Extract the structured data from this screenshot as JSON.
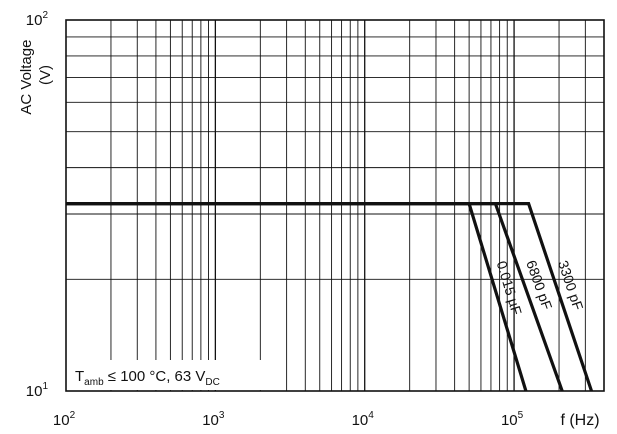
{
  "chart_data": {
    "type": "line",
    "x_scale": "log",
    "y_scale": "log",
    "xlim": [
      100,
      400000
    ],
    "ylim": [
      10,
      100
    ],
    "xlabel": "f (Hz)",
    "ylabel_line1": "AC Voltage",
    "ylabel_line2": "(V)",
    "x_ticks": [
      {
        "value": 100,
        "base": "10",
        "exp": "2"
      },
      {
        "value": 1000,
        "base": "10",
        "exp": "3"
      },
      {
        "value": 10000,
        "base": "10",
        "exp": "4"
      },
      {
        "value": 100000,
        "base": "10",
        "exp": "5"
      }
    ],
    "y_ticks": [
      {
        "value": 10,
        "base": "10",
        "exp": "1"
      },
      {
        "value": 100,
        "base": "10",
        "exp": "2"
      }
    ],
    "grid": true,
    "series": [
      {
        "name": "0.015 µF",
        "x": [
          100,
          50000,
          120000
        ],
        "y": [
          32,
          32,
          10
        ]
      },
      {
        "name": "6800 pF",
        "x": [
          100,
          75000,
          210000
        ],
        "y": [
          32,
          32,
          10
        ]
      },
      {
        "name": "3300 pF",
        "x": [
          100,
          125000,
          330000
        ],
        "y": [
          32,
          32,
          10
        ]
      }
    ],
    "annotation": {
      "t": "T",
      "t_sub": "amb",
      "mid": " ≤ 100 °C, 63 V",
      "v_sub": "DC"
    }
  }
}
